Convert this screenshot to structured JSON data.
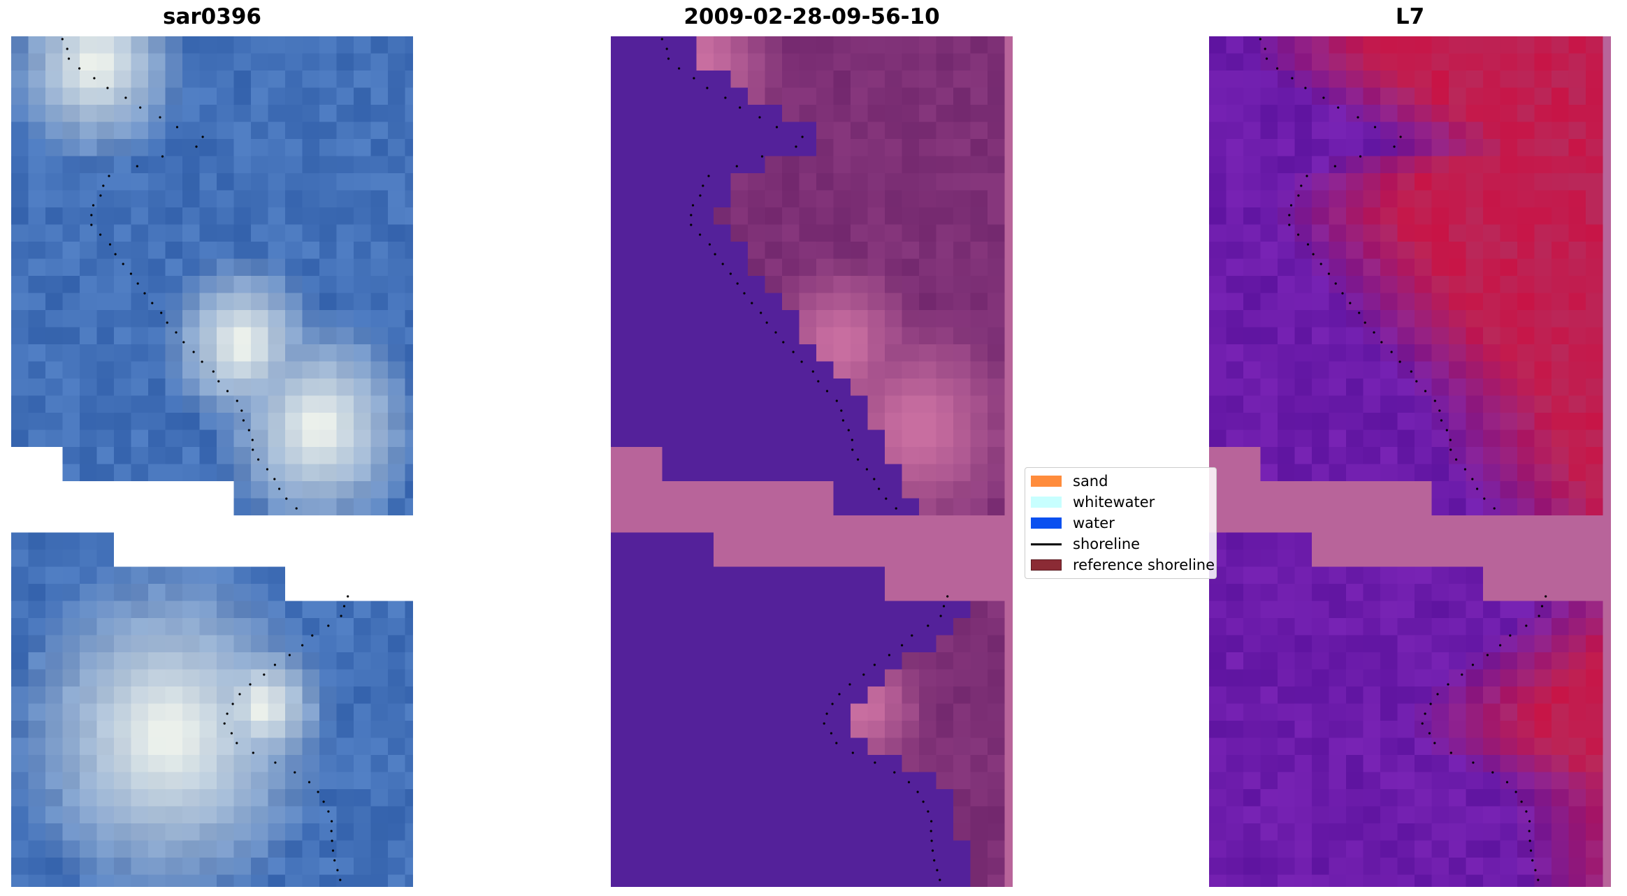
{
  "titles": {
    "left": "sar0396",
    "center": "2009-02-28-09-56-10",
    "right": "L7"
  },
  "legend": [
    {
      "label": "sand",
      "kind": "patch",
      "color": "#ff8c3c"
    },
    {
      "label": "whitewater",
      "kind": "patch",
      "color": "#c8ffff"
    },
    {
      "label": "water",
      "kind": "patch",
      "color": "#0a50f0"
    },
    {
      "label": "shoreline",
      "kind": "line",
      "color": "#000000"
    },
    {
      "label": "reference shoreline",
      "kind": "patch",
      "color": "#8b2b35"
    }
  ],
  "colors": {
    "rgb_water": "#3f6fb6",
    "class_water": "#54219a",
    "class_sand_overlay": "#b8649a",
    "mndwi_low": "#6a1aa8",
    "mndwi_high": "#c70d3e",
    "shoreline": "#000000"
  }
}
